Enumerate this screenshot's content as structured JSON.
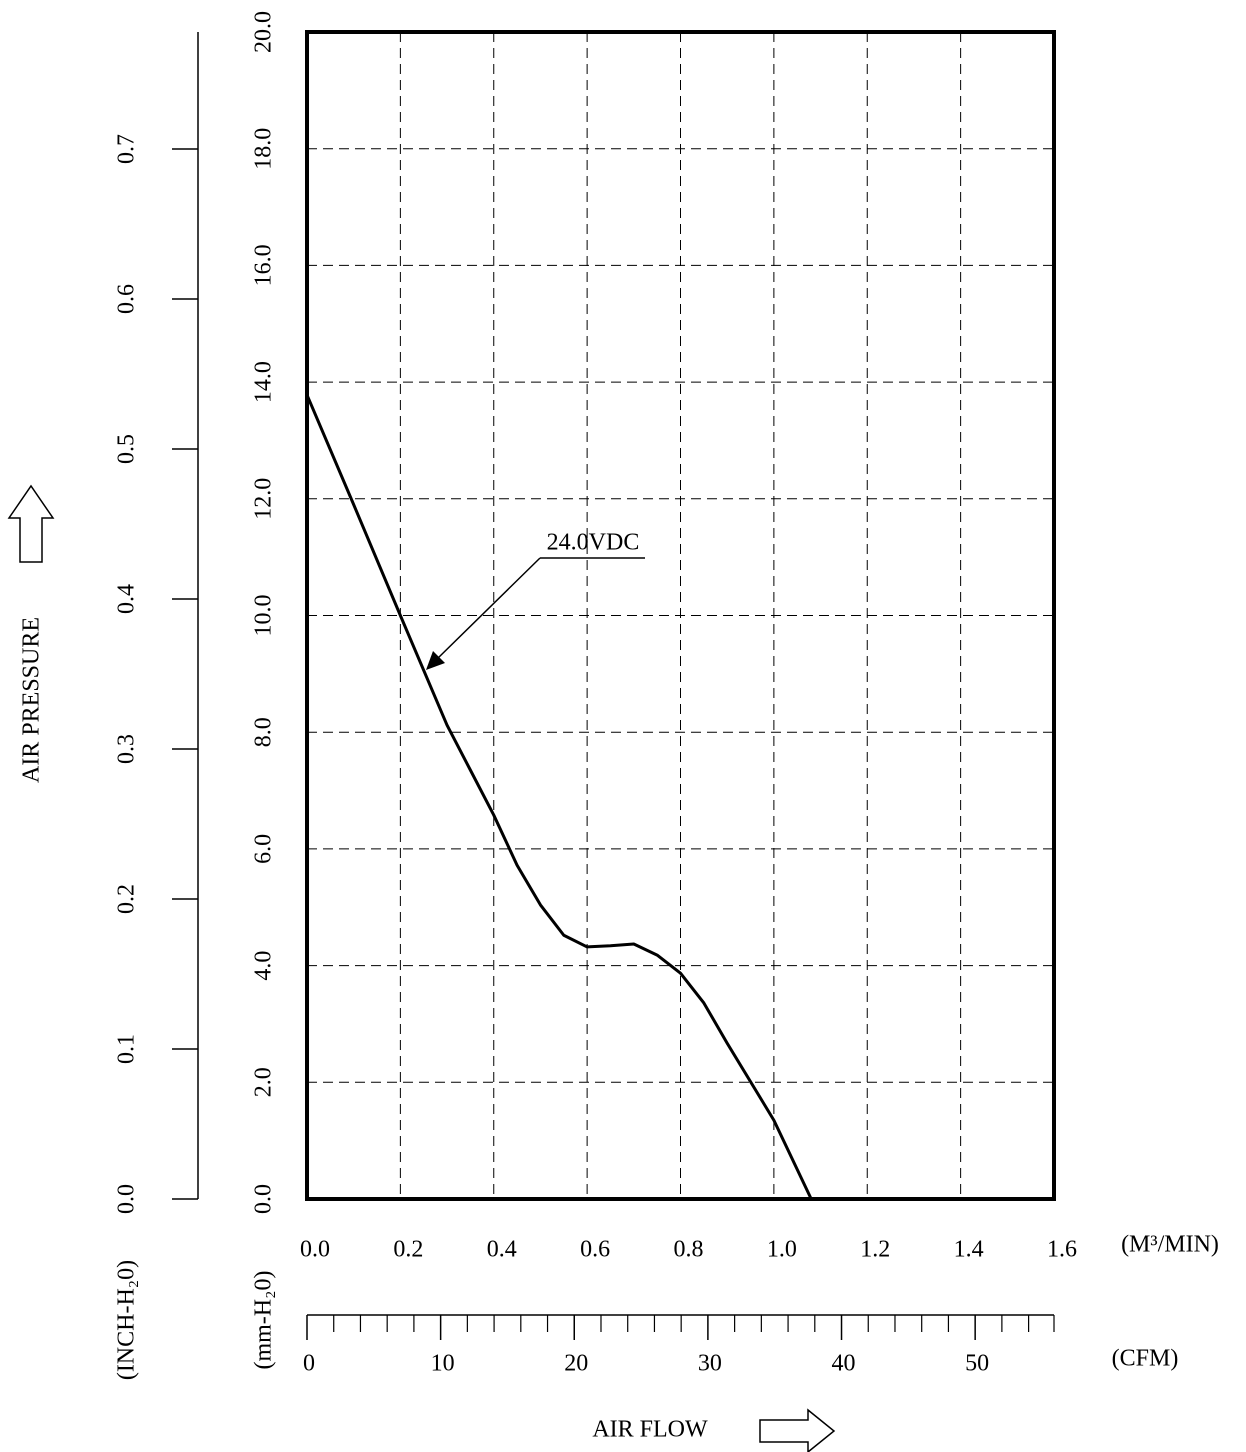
{
  "chart_data": {
    "type": "line",
    "y_axis_label": "AIR PRESSURE",
    "x_axis_label": "AIR FLOW",
    "x_unit": "(M³/MIN)",
    "x2_unit": "(CFM)",
    "y_unit": "(mm-H₂0)",
    "y2_unit": "(INCH-H₂0)",
    "xlim": [
      0,
      1.6
    ],
    "xticks": [
      {
        "value": 0,
        "label": "0.0"
      },
      0.2,
      0.4,
      0.6,
      0.8,
      {
        "value": 1,
        "label": "1.0"
      },
      1.2,
      1.4,
      1.6
    ],
    "x2lim": [
      0,
      55.9
    ],
    "x2ticks": [
      0,
      10,
      20,
      30,
      40,
      50
    ],
    "x2minor_ticks": [
      2,
      4,
      6,
      8,
      12,
      14,
      16,
      18,
      22,
      24,
      26,
      28,
      32,
      34,
      36,
      38,
      42,
      44,
      46,
      48,
      52,
      54
    ],
    "ylim": [
      0,
      20
    ],
    "yticks": [
      {
        "value": 0,
        "label": "0.0"
      },
      {
        "value": 2,
        "label": "2.0"
      },
      {
        "value": 4,
        "label": "4.0"
      },
      {
        "value": 6,
        "label": "6.0"
      },
      {
        "value": 8,
        "label": "8.0"
      },
      {
        "value": 10,
        "label": "10.0"
      },
      {
        "value": 12,
        "label": "12.0"
      },
      {
        "value": 14,
        "label": "14.0"
      },
      {
        "value": 16,
        "label": "16.0"
      },
      {
        "value": 18,
        "label": "18.0"
      },
      {
        "value": 20,
        "label": "20.0"
      }
    ],
    "y2lim": [
      0,
      0.778
    ],
    "y2ticks": [
      {
        "value": 0,
        "label": "0.0"
      },
      0.1,
      0.2,
      0.3,
      0.4,
      0.5,
      0.6,
      0.7
    ],
    "grid": true,
    "series": [
      {
        "name": "24.0VDC",
        "color": "#000000",
        "x": [
          0,
          0.1,
          0.2,
          0.3,
          0.35,
          0.4,
          0.45,
          0.5,
          0.55,
          0.6,
          0.65,
          0.7,
          0.75,
          0.8,
          0.85,
          0.9,
          1.0,
          1.08
        ],
        "values": [
          13.78,
          11.9,
          10.0,
          8.12,
          7.35,
          6.58,
          5.72,
          5.04,
          4.52,
          4.32,
          4.34,
          4.37,
          4.18,
          3.87,
          3.36,
          2.67,
          1.35,
          0
        ]
      }
    ]
  }
}
